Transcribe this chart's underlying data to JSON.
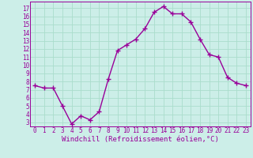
{
  "x": [
    0,
    1,
    2,
    3,
    4,
    5,
    6,
    7,
    8,
    9,
    10,
    11,
    12,
    13,
    14,
    15,
    16,
    17,
    18,
    19,
    20,
    21,
    22,
    23
  ],
  "y": [
    7.5,
    7.2,
    7.2,
    5.0,
    2.8,
    3.8,
    3.3,
    4.3,
    8.3,
    11.8,
    12.5,
    13.2,
    14.5,
    16.5,
    17.2,
    16.3,
    16.3,
    15.3,
    13.2,
    11.3,
    11.0,
    8.5,
    7.8,
    7.5
  ],
  "line_color": "#990099",
  "marker": "+",
  "marker_size": 4,
  "marker_linewidth": 1.0,
  "xlabel": "Windchill (Refroidissement éolien,°C)",
  "xlabel_fontsize": 6.5,
  "ylabel_ticks": [
    3,
    4,
    5,
    6,
    7,
    8,
    9,
    10,
    11,
    12,
    13,
    14,
    15,
    16,
    17
  ],
  "xtick_labels": [
    "0",
    "1",
    "2",
    "3",
    "4",
    "5",
    "6",
    "7",
    "8",
    "9",
    "10",
    "11",
    "12",
    "13",
    "14",
    "15",
    "16",
    "17",
    "18",
    "19",
    "20",
    "21",
    "22",
    "23"
  ],
  "ylim": [
    2.5,
    17.8
  ],
  "xlim": [
    -0.5,
    23.5
  ],
  "bg_color": "#cceee8",
  "grid_color": "#aaddcc",
  "tick_color": "#990099",
  "tick_fontsize": 5.5,
  "line_width": 1.0
}
